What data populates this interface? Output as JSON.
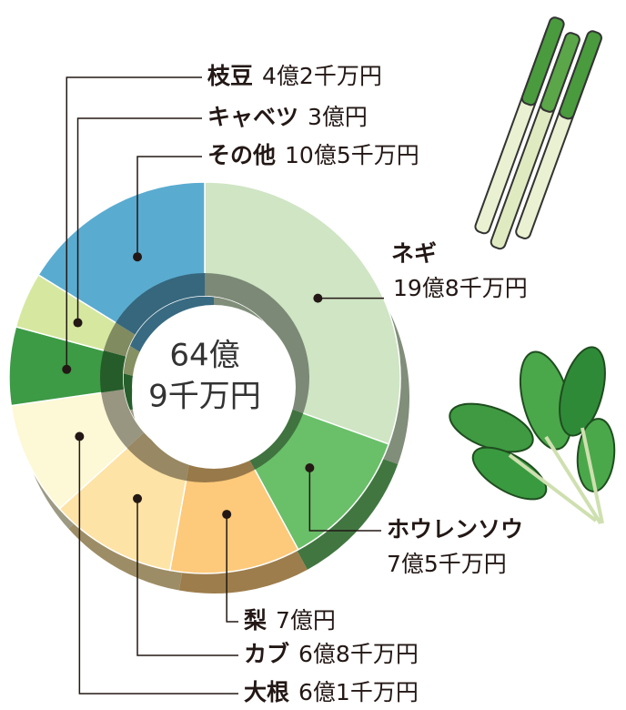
{
  "chart_data": {
    "type": "donut",
    "categories": [
      "ネギ",
      "ホウレンソウ",
      "梨",
      "カブ",
      "大根",
      "枝豆",
      "キャベツ",
      "その他"
    ],
    "values": [
      19.8,
      7.5,
      7,
      6.8,
      6.1,
      4.2,
      3,
      10.5
    ],
    "value_labels": [
      "19億8千万円",
      "7億5千万円",
      "7億円",
      "6億8千万円",
      "6億1千万円",
      "4億2千万円",
      "3億円",
      "10億5千万円"
    ],
    "colors": [
      "#cfe5c4",
      "#6abf69",
      "#fdc97a",
      "#fde3a5",
      "#fdf8d5",
      "#3d9a45",
      "#d6e8a0",
      "#5aabd0"
    ],
    "center_label": [
      "64億",
      "9千万円"
    ]
  }
}
